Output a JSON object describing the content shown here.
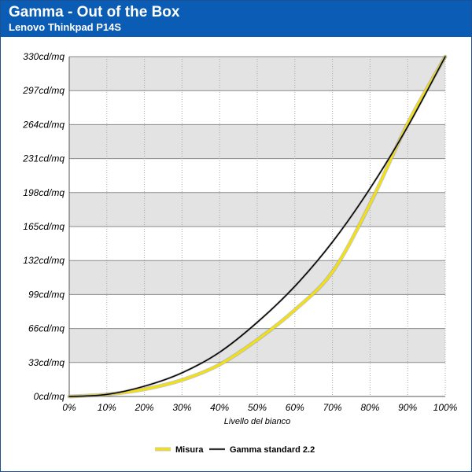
{
  "header": {
    "title": "Gamma - Out of the Box",
    "subtitle": "Lenovo Thinkpad P14S"
  },
  "chart_data": {
    "type": "line",
    "xlabel": "Livello del bianco",
    "ylabel": "",
    "x": [
      0,
      10,
      20,
      30,
      40,
      50,
      60,
      70,
      80,
      90,
      100
    ],
    "x_tick_labels": [
      "0%",
      "10%",
      "20%",
      "30%",
      "40%",
      "50%",
      "60%",
      "70%",
      "80%",
      "90%",
      "100%"
    ],
    "y_tick_values": [
      0,
      33,
      66,
      99,
      132,
      165,
      198,
      231,
      264,
      297,
      330
    ],
    "y_tick_labels": [
      "0cd/mq",
      "33cd/mq",
      "66cd/mq",
      "99cd/mq",
      "132cd/mq",
      "165cd/mq",
      "198cd/mq",
      "231cd/mq",
      "264cd/mq",
      "297cd/mq",
      "330cd/mq"
    ],
    "xlim": [
      0,
      100
    ],
    "ylim": [
      0,
      330
    ],
    "grid": true,
    "legend_position": "bottom",
    "series": [
      {
        "name": "Misura",
        "color": "#f2e10f",
        "values": [
          0,
          2,
          7,
          16,
          31,
          55,
          84,
          121,
          187,
          265,
          330
        ]
      },
      {
        "name": "Gamma standard 2.2",
        "color": "#000000",
        "values": [
          0,
          2,
          10,
          23,
          43,
          72,
          107,
          150,
          202,
          262,
          330
        ]
      }
    ]
  }
}
